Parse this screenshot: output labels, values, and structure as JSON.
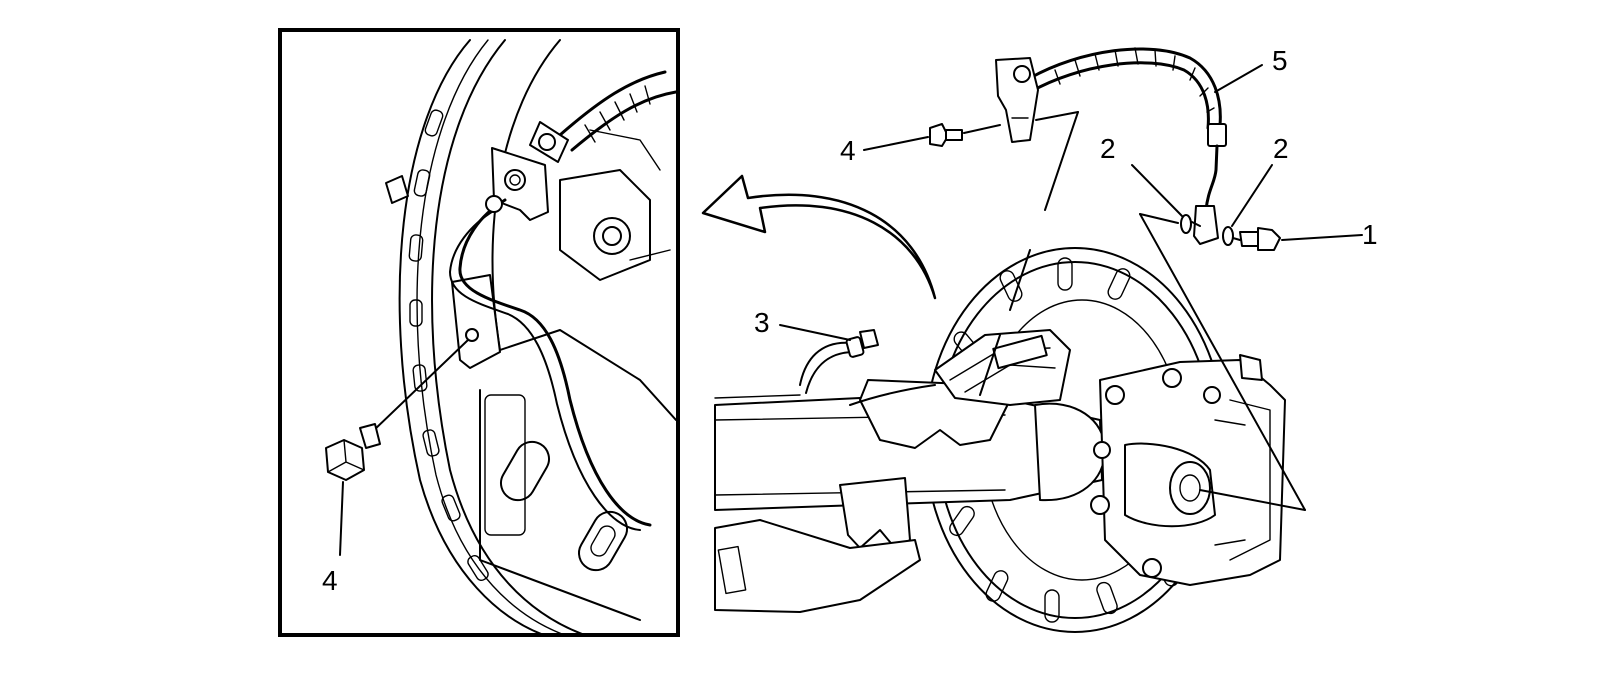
{
  "callouts": {
    "c1": "1",
    "c2a": "2",
    "c2b": "2",
    "c3": "3",
    "c4_main": "4",
    "c4_inset": "4",
    "c5": "5"
  },
  "colors": {
    "line": "#000000",
    "background": "#ffffff"
  }
}
